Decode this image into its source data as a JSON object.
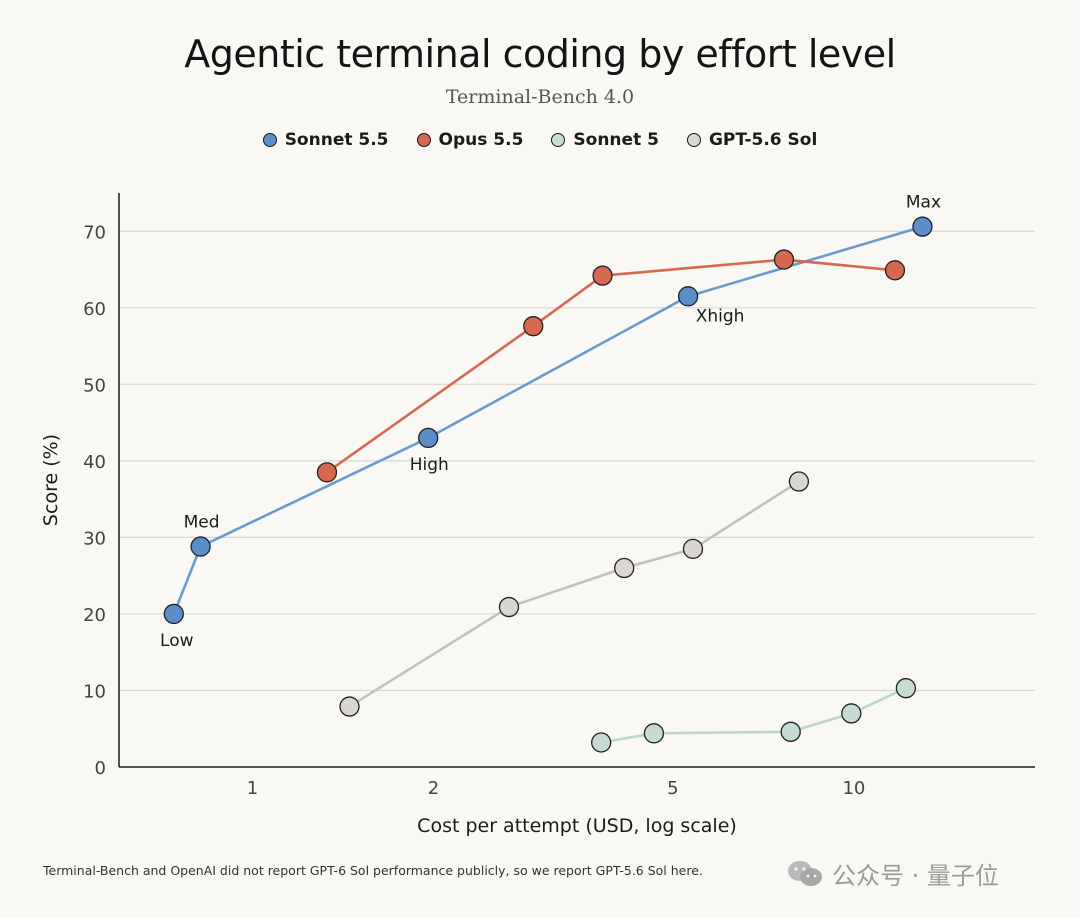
{
  "chart_data": {
    "type": "line",
    "title": "Agentic terminal coding by effort level",
    "subtitle": "Terminal-Bench 4.0",
    "xlabel": "Cost per attempt (USD, log scale)",
    "ylabel": "Score (%)",
    "x_scale": "log",
    "xlim": [
      0.6,
      20
    ],
    "ylim": [
      0,
      75
    ],
    "x_ticks": [
      1,
      2,
      5,
      10
    ],
    "y_ticks": [
      0,
      10,
      20,
      30,
      40,
      50,
      60,
      70
    ],
    "grid": "horizontal",
    "legend_position": "top-center",
    "series": [
      {
        "name": "Sonnet 5.5",
        "color": "#5b8ec9",
        "points": [
          {
            "x": 0.74,
            "y": 20,
            "label": "Low"
          },
          {
            "x": 0.82,
            "y": 28.8,
            "label": "Med"
          },
          {
            "x": 1.96,
            "y": 43,
            "label": "High"
          },
          {
            "x": 5.3,
            "y": 61.5,
            "label": "Xhigh"
          },
          {
            "x": 13.0,
            "y": 70.6,
            "label": "Max"
          }
        ]
      },
      {
        "name": "Opus 5.5",
        "color": "#d4694f",
        "points": [
          {
            "x": 1.33,
            "y": 38.5
          },
          {
            "x": 2.93,
            "y": 57.6
          },
          {
            "x": 3.82,
            "y": 64.2
          },
          {
            "x": 7.65,
            "y": 66.3
          },
          {
            "x": 11.7,
            "y": 64.9
          }
        ]
      },
      {
        "name": "Sonnet 5",
        "color": "#c6dcd3",
        "points": [
          {
            "x": 3.8,
            "y": 3.2
          },
          {
            "x": 4.65,
            "y": 4.4
          },
          {
            "x": 7.85,
            "y": 4.6
          },
          {
            "x": 9.9,
            "y": 7.0
          },
          {
            "x": 12.2,
            "y": 10.3
          }
        ]
      },
      {
        "name": "GPT-5.6 Sol",
        "color": "#d8d6cf",
        "points": [
          {
            "x": 1.45,
            "y": 7.9
          },
          {
            "x": 2.67,
            "y": 20.9
          },
          {
            "x": 4.15,
            "y": 26.0
          },
          {
            "x": 5.4,
            "y": 28.5
          },
          {
            "x": 8.1,
            "y": 37.3
          }
        ]
      }
    ]
  },
  "footnote": "Terminal-Bench and OpenAI did not report GPT-6 Sol performance publicly, so we report GPT-5.6 Sol here.",
  "watermark": "公众号 · 量子位"
}
